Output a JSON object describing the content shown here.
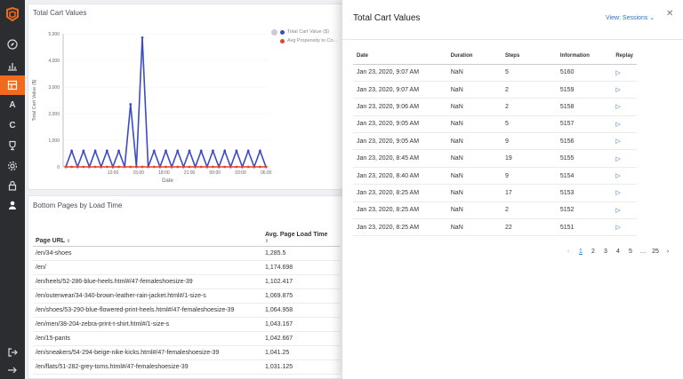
{
  "colors": {
    "brand": "#f26b1d",
    "link": "#2a73c9",
    "series1": "#3b4bc8",
    "series2": "#e0452f"
  },
  "sidebar": {
    "logo": "ambient-logo",
    "items": [
      {
        "icon": "compass-icon"
      },
      {
        "icon": "bar-chart-icon"
      },
      {
        "icon": "dashboard-icon",
        "active": true
      },
      {
        "icon": "letter-a-icon",
        "label": "A"
      },
      {
        "icon": "letter-c-icon",
        "label": "C"
      },
      {
        "icon": "trophy-icon"
      },
      {
        "icon": "settings-icon"
      },
      {
        "icon": "lock-icon"
      },
      {
        "icon": "user-icon"
      },
      {
        "icon": "logout-icon"
      },
      {
        "icon": "arrow-right-icon"
      }
    ]
  },
  "chart_panel": {
    "title": "Total Cart Values"
  },
  "chart_data": {
    "type": "line",
    "title": "Total Cart Values",
    "xlabel": "Date",
    "ylabel": "Total Cart Value ($)",
    "ylim": [
      0,
      5000
    ],
    "yticks": [
      "0",
      "1,000",
      "2,000",
      "3,000",
      "4,000",
      "5,000"
    ],
    "xticks": [
      "12:00",
      "15:00",
      "18:00",
      "21:00",
      "00:00",
      "03:00",
      "06:00"
    ],
    "legend_position": "right",
    "series": [
      {
        "name": "Total Cart Value ($)",
        "color": "#3b4bc8",
        "values": [
          0,
          600,
          0,
          600,
          0,
          600,
          0,
          600,
          0,
          600,
          0,
          2350,
          0,
          4850,
          0,
          600,
          0,
          600,
          0,
          600,
          0,
          600,
          0,
          600,
          0,
          600,
          0,
          600,
          0,
          600,
          0,
          600,
          0,
          600,
          0
        ]
      },
      {
        "name": "Avg Propensity to Co...",
        "color": "#e0452f",
        "values": [
          0,
          0,
          0,
          0,
          0,
          0,
          0,
          0,
          0,
          0,
          0,
          0,
          0,
          0,
          0,
          0,
          0,
          0,
          0,
          0,
          0,
          0,
          0,
          0,
          0,
          0,
          0,
          0,
          0,
          0,
          0,
          0,
          0,
          0,
          0
        ]
      }
    ]
  },
  "pages_panel": {
    "title": "Bottom Pages by Load Time",
    "columns": [
      "Page URL",
      "Avg. Page Load Time"
    ],
    "rows": [
      [
        "/en/34-shoes",
        "1,285.5"
      ],
      [
        "/en/",
        "1,174.698"
      ],
      [
        "/en/heels/52-286-blue-heels.html#/47-femaleshoesize-39",
        "1,102.417"
      ],
      [
        "/en/outerwear/34-340-brown-leather-rain-jacket.html#/1-size-s",
        "1,069.875"
      ],
      [
        "/en/shoes/53-290-blue-flowered-print-heels.html#/47-femaleshoesize-39",
        "1,064.958"
      ],
      [
        "/en/men/38-204-zebra-print-t-shirt.html#/1-size-s",
        "1,043.167"
      ],
      [
        "/en/15-pants",
        "1,042.667"
      ],
      [
        "/en/sneakers/54-294-beige-nike-kicks.html#/47-femaleshoesize-39",
        "1,041.25"
      ],
      [
        "/en/flats/51-282-grey-toms.html#/47-femaleshoesize-39",
        "1,031.125"
      ]
    ]
  },
  "drawer": {
    "title": "Total Cart Values",
    "view_label": "View: Sessions",
    "columns": [
      "Date",
      "Duration",
      "Steps",
      "Information",
      "Replay"
    ],
    "rows": [
      [
        "Jan 23, 2020, 9:07 AM",
        "NaN",
        "5",
        "5160"
      ],
      [
        "Jan 23, 2020, 9:07 AM",
        "NaN",
        "2",
        "5159"
      ],
      [
        "Jan 23, 2020, 9:06 AM",
        "NaN",
        "2",
        "5158"
      ],
      [
        "Jan 23, 2020, 9:05 AM",
        "NaN",
        "5",
        "5157"
      ],
      [
        "Jan 23, 2020, 9:05 AM",
        "NaN",
        "9",
        "5156"
      ],
      [
        "Jan 23, 2020, 8:45 AM",
        "NaN",
        "19",
        "5155"
      ],
      [
        "Jan 23, 2020, 8:40 AM",
        "NaN",
        "9",
        "5154"
      ],
      [
        "Jan 23, 2020, 8:25 AM",
        "NaN",
        "17",
        "5153"
      ],
      [
        "Jan 23, 2020, 8:25 AM",
        "NaN",
        "2",
        "5152"
      ],
      [
        "Jan 23, 2020, 8:25 AM",
        "NaN",
        "22",
        "5151"
      ]
    ],
    "pagination": {
      "prev": "‹",
      "pages": [
        "1",
        "2",
        "3",
        "4",
        "5",
        "…",
        "25"
      ],
      "current": "1",
      "next": "›"
    }
  }
}
